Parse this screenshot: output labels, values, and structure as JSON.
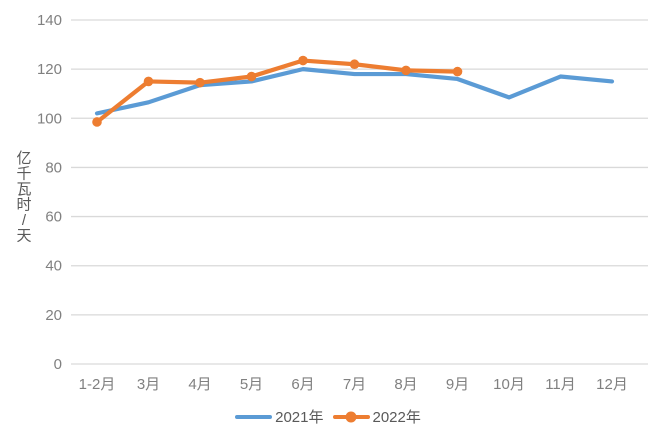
{
  "chart_data": {
    "type": "line",
    "title": "",
    "ylabel": "亿千瓦时/天",
    "xlabel": "",
    "categories": [
      "1-2月",
      "3月",
      "4月",
      "5月",
      "6月",
      "7月",
      "8月",
      "9月",
      "10月",
      "11月",
      "12月"
    ],
    "series": [
      {
        "name": "2021年",
        "color": "#5B9BD5",
        "marker": "none",
        "values": [
          102,
          106.5,
          113.5,
          115,
          120,
          118,
          118,
          116,
          108.5,
          117,
          115
        ]
      },
      {
        "name": "2022年",
        "color": "#ED7D31",
        "marker": "circle",
        "values": [
          98.5,
          115,
          114.5,
          117,
          123.5,
          122,
          119.5,
          119,
          null,
          null,
          null
        ]
      }
    ],
    "ylim": [
      0,
      140
    ],
    "yticks": [
      0,
      20,
      40,
      60,
      80,
      100,
      120,
      140
    ],
    "grid": true,
    "legend_position": "bottom"
  },
  "colors": {
    "background": "#ffffff",
    "gridline": "#d9d9d9",
    "tick_label": "#808080",
    "axis_title": "#595959",
    "legend_text": "#595959"
  }
}
